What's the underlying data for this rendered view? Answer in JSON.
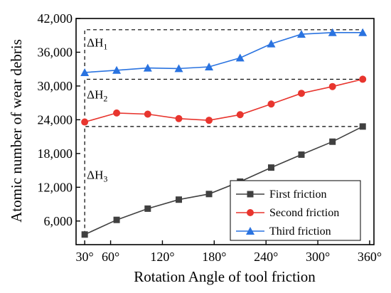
{
  "chart_data": {
    "type": "line",
    "xlabel": "Rotation Angle of tool friction",
    "ylabel": "Atomic number of wear debris",
    "xlim": [
      20,
      365
    ],
    "ylim": [
      1800,
      42000
    ],
    "x_ticks": [
      30,
      60,
      120,
      180,
      240,
      300,
      360
    ],
    "x_tick_labels": [
      "30°",
      "60°",
      "120°",
      "180°",
      "240°",
      "300°",
      "360°"
    ],
    "y_ticks": [
      6000,
      12000,
      18000,
      24000,
      30000,
      36000,
      42000
    ],
    "y_tick_labels": [
      "6,000",
      "12,000",
      "18,000",
      "24,000",
      "30,000",
      "36,000",
      "42,000"
    ],
    "grid": false,
    "legend_position": "bottom-right",
    "series": [
      {
        "name": "First friction",
        "marker": "square",
        "color": "#404040",
        "x": [
          30,
          67,
          103,
          139,
          174,
          210,
          246,
          281,
          317,
          352
        ],
        "y": [
          3600,
          6200,
          8200,
          9800,
          10800,
          13000,
          15500,
          17800,
          20100,
          22800
        ]
      },
      {
        "name": "Second friction",
        "marker": "circle",
        "color": "#e8352e",
        "x": [
          30,
          67,
          103,
          139,
          174,
          210,
          246,
          281,
          317,
          352
        ],
        "y": [
          23600,
          25200,
          25000,
          24200,
          23900,
          24900,
          26800,
          28700,
          29900,
          31200
        ]
      },
      {
        "name": "Third friction",
        "marker": "triangle",
        "color": "#2a73e0",
        "x": [
          30,
          67,
          103,
          139,
          174,
          210,
          246,
          281,
          317,
          352
        ],
        "y": [
          32400,
          32800,
          33200,
          33100,
          33400,
          35000,
          37500,
          39200,
          39500,
          39500
        ]
      }
    ],
    "annotations": [
      {
        "main": "ΔH",
        "sub": "1"
      },
      {
        "main": "ΔH",
        "sub": "2"
      },
      {
        "main": "ΔH",
        "sub": "3"
      }
    ]
  }
}
